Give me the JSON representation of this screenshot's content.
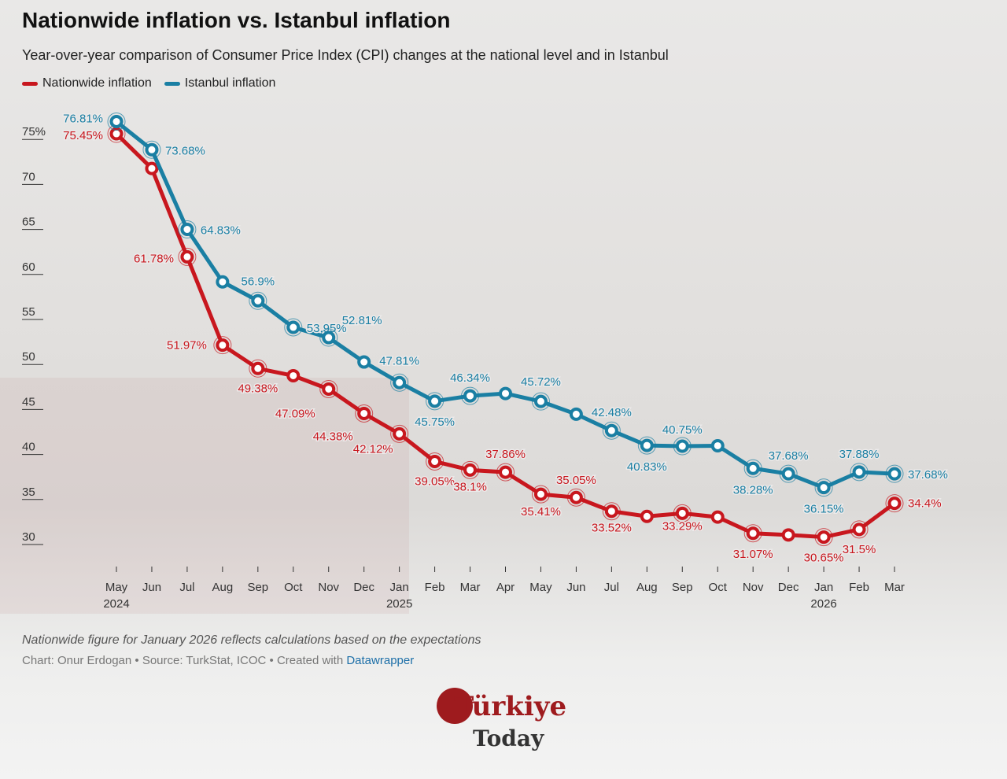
{
  "title": "Nationwide inflation vs. Istanbul inflation",
  "subtitle": "Year-over-year comparison of Consumer Price Index (CPI) changes at the national level and in Istanbul",
  "note": "Nationwide figure for January 2026 reflects calculations based on the expectations",
  "credit": {
    "prefix": "Chart: Onur Erdogan • Source: TurkStat, ICOC • Created with ",
    "link": "Datawrapper"
  },
  "logo": {
    "line1": "Türkiye",
    "line2": "Today"
  },
  "chart_data": {
    "type": "line",
    "title": "Nationwide inflation vs. Istanbul inflation",
    "legend_placement": "top-left",
    "grid": false,
    "ylim": [
      30,
      77
    ],
    "y_ticks": [
      "75%",
      "70",
      "65",
      "60",
      "55",
      "50",
      "45",
      "40",
      "35",
      "30"
    ],
    "y_tick_values": [
      75,
      70,
      65,
      60,
      55,
      50,
      45,
      40,
      35,
      30
    ],
    "categories": [
      "May",
      "Jun",
      "Jul",
      "Aug",
      "Sep",
      "Oct",
      "Nov",
      "Dec",
      "Jan",
      "Feb",
      "Mar",
      "Apr",
      "May",
      "Jun",
      "Jul",
      "Aug",
      "Sep",
      "Oct",
      "Nov",
      "Dec",
      "Jan",
      "Feb",
      "Mar"
    ],
    "year_labels": {
      "0": "2024",
      "8": "2025",
      "20": "2026"
    },
    "series": [
      {
        "name": "Nationwide inflation",
        "color": "#c8171e",
        "values": [
          75.45,
          71.6,
          61.78,
          51.97,
          49.38,
          48.58,
          47.09,
          44.38,
          42.12,
          39.05,
          38.1,
          37.86,
          35.41,
          35.05,
          33.52,
          32.95,
          33.29,
          32.87,
          31.07,
          30.89,
          30.65,
          31.5,
          34.4
        ],
        "labels": [
          "75.45%",
          null,
          "61.78%",
          "51.97%",
          "49.38%",
          null,
          "47.09%",
          "44.38%",
          "42.12%",
          "39.05%",
          "38.1%",
          "37.86%",
          "35.41%",
          "35.05%",
          "33.52%",
          null,
          "33.29%",
          null,
          "31.07%",
          null,
          "30.65%",
          "31.5%",
          "34.4%"
        ]
      },
      {
        "name": "Istanbul inflation",
        "color": "#1a7fa3",
        "values": [
          76.81,
          73.68,
          64.83,
          59.0,
          56.9,
          53.95,
          52.81,
          50.1,
          47.81,
          45.75,
          46.34,
          46.6,
          45.72,
          44.3,
          42.48,
          40.83,
          40.75,
          40.8,
          38.28,
          37.68,
          36.15,
          37.88,
          37.68
        ],
        "labels": [
          "76.81%",
          "73.68%",
          "64.83%",
          null,
          "56.9%",
          "53.95%",
          "52.81%",
          null,
          "47.81%",
          "45.75%",
          "46.34%",
          null,
          "45.72%",
          null,
          "42.48%",
          "40.83%",
          "40.75%",
          null,
          "38.28%",
          "37.68%",
          "36.15%",
          "37.88%",
          "37.68%"
        ]
      }
    ]
  }
}
